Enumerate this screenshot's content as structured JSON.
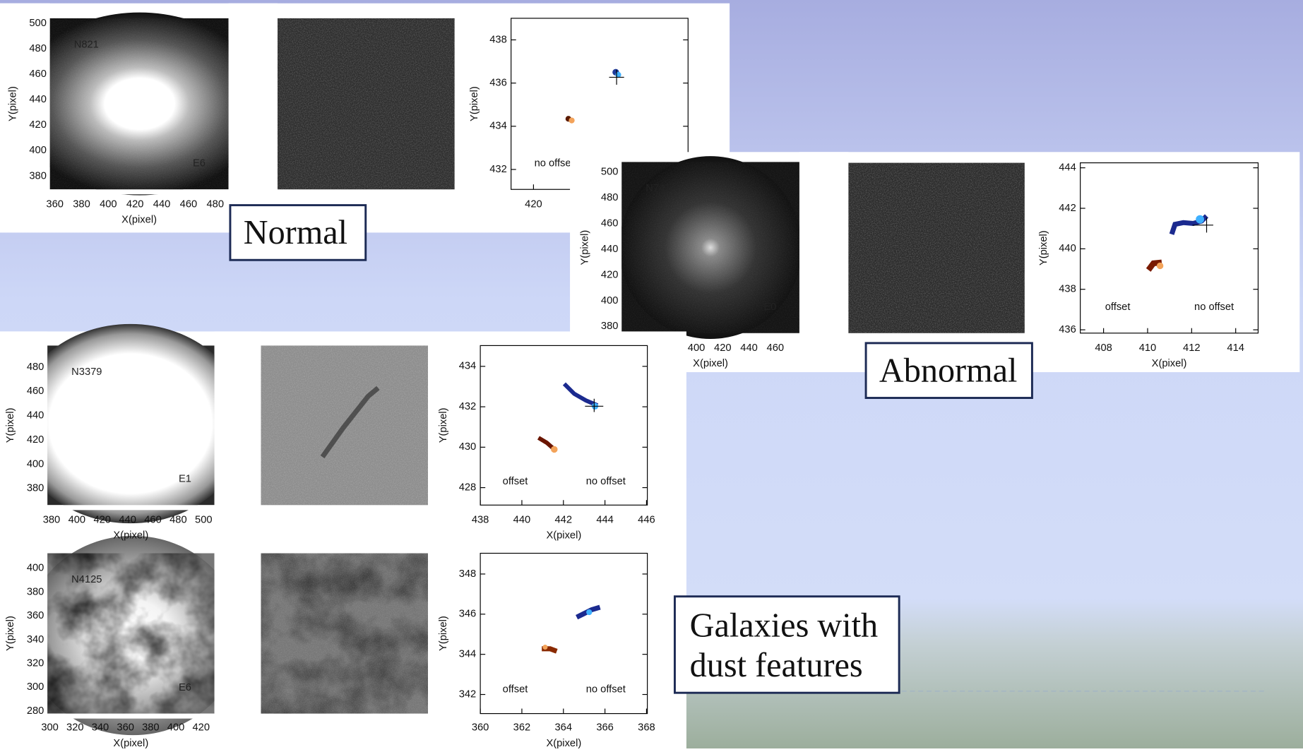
{
  "slide": {
    "labels": {
      "normal": "Normal",
      "abnormal": "Abnormal",
      "dust": [
        "Galaxies with",
        "dust features"
      ]
    },
    "rows": [
      {
        "galaxy": "N821",
        "class": "E6",
        "image_yticks": [
          500,
          480,
          460,
          440,
          420,
          400,
          380
        ],
        "image_xticks": [
          360,
          380,
          400,
          420,
          440,
          460,
          480
        ],
        "image_x_label": "X(pixel)",
        "image_y_label": "Y(pixel)",
        "offset_yticks": [
          438,
          436,
          434,
          432
        ],
        "offset_xticks": [
          420
        ],
        "offset_y_label": "Y(pixel)",
        "offset_texts": [
          "no offset"
        ]
      },
      {
        "galaxy": "N741",
        "class": "E0",
        "image_yticks": [
          500,
          480,
          460,
          440,
          420,
          400,
          380
        ],
        "image_xticks": [
          400,
          420,
          440,
          460
        ],
        "image_x_label": "X(pixel)",
        "image_y_label": "Y(pixel)",
        "offset_yticks": [
          444,
          442,
          440,
          438,
          436
        ],
        "offset_xticks": [
          408,
          410,
          412,
          414
        ],
        "offset_x_label": "X(pixel)",
        "offset_y_label": "Y(pixel)",
        "offset_texts": [
          "offset",
          "no offset"
        ]
      },
      {
        "galaxy": "N3379",
        "class": "E1",
        "image_yticks": [
          480,
          460,
          440,
          420,
          400,
          380
        ],
        "image_xticks": [
          380,
          400,
          420,
          440,
          460,
          480,
          500
        ],
        "image_x_label": "X(pixel)",
        "image_y_label": "Y(pixel)",
        "offset_yticks": [
          434,
          432,
          430,
          428
        ],
        "offset_xticks": [
          438,
          440,
          442,
          444,
          446
        ],
        "offset_x_label": "X(pixel)",
        "offset_y_label": "Y(pixel)",
        "offset_texts": [
          "offset",
          "no offset"
        ]
      },
      {
        "galaxy": "N4125",
        "class": "E6",
        "image_yticks": [
          400,
          380,
          360,
          340,
          320,
          300,
          280
        ],
        "image_xticks": [
          300,
          320,
          340,
          360,
          380,
          400,
          420
        ],
        "image_x_label": "X(pixel)",
        "image_y_label": "Y(pixel)",
        "offset_yticks": [
          348,
          346,
          344,
          342
        ],
        "offset_xticks": [
          360,
          362,
          364,
          366,
          368
        ],
        "offset_x_label": "X(pixel)",
        "offset_y_label": "Y(pixel)",
        "offset_texts": [
          "offset",
          "no offset"
        ]
      }
    ]
  }
}
